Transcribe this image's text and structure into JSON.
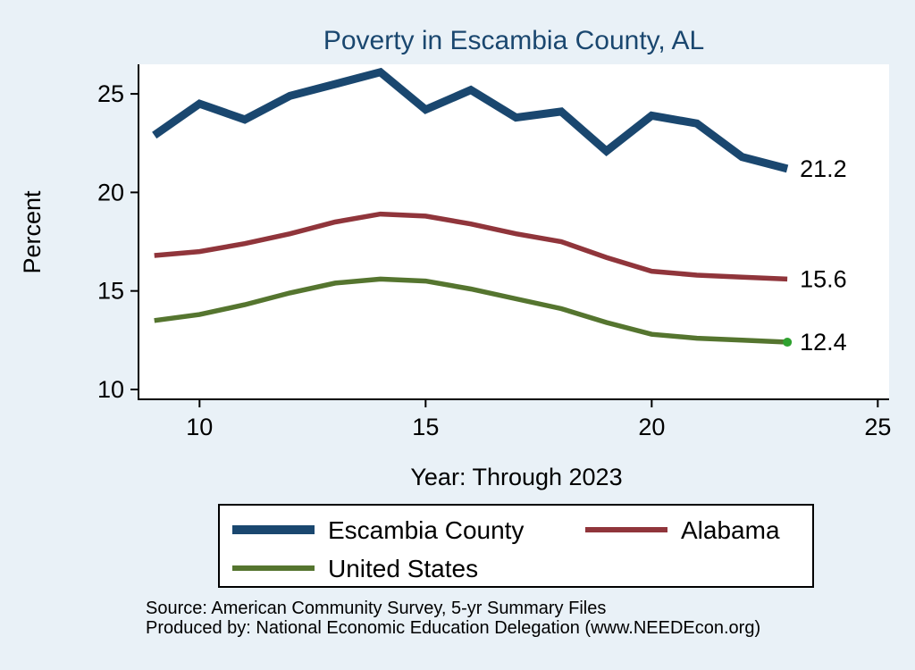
{
  "page": {
    "background_color": "#e9f1f7",
    "plot_background_color": "#ffffff",
    "axis_color": "#000000"
  },
  "chart_data": {
    "type": "line",
    "title": "Poverty in Escambia County, AL",
    "title_color": "#1a476f",
    "xlabel": "Year: Through 2023",
    "ylabel": "Percent",
    "x": [
      9,
      10,
      11,
      12,
      13,
      14,
      15,
      16,
      17,
      18,
      19,
      20,
      21,
      22,
      23
    ],
    "xlim": [
      8.65,
      25.25
    ],
    "ylim": [
      9.5,
      26.5
    ],
    "xticks": [
      10,
      15,
      20,
      25
    ],
    "yticks": [
      10,
      15,
      20,
      25
    ],
    "grid": false,
    "legend_position": "bottom",
    "series": [
      {
        "name": "Escambia County",
        "color": "#1a476f",
        "width": 9,
        "end_label": "21.2",
        "values": [
          22.9,
          24.5,
          23.7,
          24.9,
          25.5,
          26.1,
          24.2,
          25.2,
          23.8,
          24.1,
          22.1,
          23.9,
          23.5,
          21.8,
          21.2
        ]
      },
      {
        "name": "Alabama",
        "color": "#90353b",
        "width": 5.5,
        "end_label": "15.6",
        "values": [
          16.8,
          17.0,
          17.4,
          17.9,
          18.5,
          18.9,
          18.8,
          18.4,
          17.9,
          17.5,
          16.7,
          16.0,
          15.8,
          15.7,
          15.6
        ]
      },
      {
        "name": "United States",
        "color": "#55752f",
        "width": 5.5,
        "end_label": "12.4",
        "end_dot_color": "#2fa12f",
        "values": [
          13.5,
          13.8,
          14.3,
          14.9,
          15.4,
          15.6,
          15.5,
          15.1,
          14.6,
          14.1,
          13.4,
          12.8,
          12.6,
          12.5,
          12.4
        ]
      }
    ]
  },
  "source": {
    "line1": "Source: American Community Survey, 5-yr Summary Files",
    "line2": "Produced by: National Economic Education Delegation (www.NEEDEcon.org)"
  }
}
